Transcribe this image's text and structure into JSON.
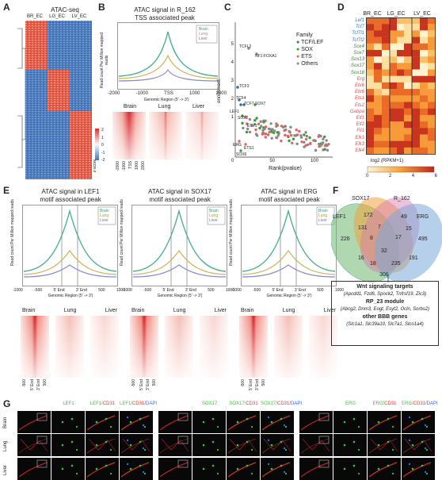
{
  "panels": {
    "A": {
      "label": "A",
      "title": "ATAC-seq",
      "columns": [
        "BR_EC",
        "LG_EC",
        "LV_EC"
      ],
      "legend_ticks": [
        "2",
        "1",
        "0",
        "-1",
        "-2"
      ],
      "legend_label": "z-score",
      "colors": {
        "high": "#d73027",
        "mid": "#f7f7f7",
        "low": "#4575b4"
      }
    },
    "B": {
      "label": "B",
      "title": "ATAC signal in R_162",
      "subtitle": "TSS associated peak",
      "ylabel": "Read count Per Million mapped reads",
      "xlabel": "Genomic Region (5' -> 3')",
      "legend": [
        "Brain",
        "Lung",
        "Liver"
      ],
      "xticks": [
        "-2000",
        "-1000",
        "TSS",
        "1000",
        "2000"
      ],
      "heat_titles": [
        "Brain",
        "Lung",
        "Liver"
      ],
      "heat_ticks": [
        "-2000",
        "-1000",
        "TSS",
        "1000",
        "2000"
      ]
    },
    "C": {
      "label": "C",
      "ylabel": "enrichment",
      "xlabel": "Rank(pvalue)",
      "yticks": [
        "5",
        "4",
        "3",
        "2",
        "1"
      ],
      "xticks": [
        "0",
        "50",
        "100"
      ],
      "legend_title": "Family",
      "legend": [
        {
          "name": "TCF/LEF",
          "color": "#2c6aa0"
        },
        {
          "name": "SOX",
          "color": "#3a9a3a"
        },
        {
          "name": "ETS",
          "color": "#e0655a"
        },
        {
          "name": "Others",
          "color": "#888888"
        }
      ],
      "annotations": [
        "TCFL2",
        "NF1:FOXA1",
        "TCF3",
        "TCF4",
        "LEF1",
        "TCF7",
        "SOX7",
        "SOX2",
        "SOX6",
        "ERG",
        "ETS1",
        "ETV1"
      ]
    },
    "D": {
      "label": "D",
      "columns": [
        "BR_EC",
        "LG_EC",
        "LV_EC"
      ],
      "genes": [
        {
          "name": "Lef1",
          "color": "#3a7bbf"
        },
        {
          "name": "Tcf7",
          "color": "#3a7bbf"
        },
        {
          "name": "Tcf7l1",
          "color": "#3a7bbf"
        },
        {
          "name": "Tcf7l2",
          "color": "#3a7bbf"
        },
        {
          "name": "Sox4",
          "color": "#2f8f2f"
        },
        {
          "name": "Sox7",
          "color": "#2f8f2f"
        },
        {
          "name": "Sox13",
          "color": "#2f8f2f"
        },
        {
          "name": "Sox17",
          "color": "#2f8f2f"
        },
        {
          "name": "Sox18",
          "color": "#2f8f2f"
        },
        {
          "name": "Erg",
          "color": "#d9534f"
        },
        {
          "name": "Etv6",
          "color": "#d9534f"
        },
        {
          "name": "Etv6",
          "color": "#d9534f"
        },
        {
          "name": "Ets1",
          "color": "#d9534f"
        },
        {
          "name": "Ets2",
          "color": "#d9534f"
        },
        {
          "name": "Gabpa",
          "color": "#d9534f"
        },
        {
          "name": "Elf1",
          "color": "#d9534f"
        },
        {
          "name": "Elf2",
          "color": "#d9534f"
        },
        {
          "name": "Fli1",
          "color": "#d9534f"
        },
        {
          "name": "Elk1",
          "color": "#d9534f"
        },
        {
          "name": "Elk3",
          "color": "#d9534f"
        },
        {
          "name": "Elk4",
          "color": "#d9534f"
        }
      ],
      "scale_label": "log2 (RPKM+1)",
      "scale_ticks": [
        "0",
        "2",
        "4",
        "6"
      ]
    },
    "E": {
      "label": "E",
      "plots": [
        {
          "title": "ATAC signal in LEF1",
          "subtitle": "motif associated peak"
        },
        {
          "title": "ATAC signal in SOX17",
          "subtitle": "motif associated peak"
        },
        {
          "title": "ATAC signal in ERG",
          "subtitle": "motif associated peak"
        }
      ],
      "ylabel": "Read count Per Million mapped reads",
      "xlabel": "Genomic Region (5' -> 3')",
      "xticks": [
        "-1000",
        "-500",
        "5' End",
        "3' End",
        "500",
        "1000"
      ],
      "legend": [
        "Brain",
        "Lung",
        "Liver"
      ],
      "heat_titles": [
        "Brain",
        "Lung",
        "Liver"
      ]
    },
    "F": {
      "label": "F",
      "sets": [
        "LEF1",
        "SOX17",
        "R_162",
        "ERG"
      ],
      "numbers": [
        "172",
        "49",
        "226",
        "131",
        "7",
        "15",
        "495",
        "8",
        "17",
        "16",
        "32",
        "191",
        "18",
        "235",
        "306"
      ],
      "box": {
        "heading1": "Wnt signaling targets",
        "genes1": "(Apcdd1, Fzd6, Spock2, Tnfrsf19, Zic3)",
        "heading2": "RP_23 module",
        "genes2a": "(Abcg2, Dnm3, Eogt, Esyt2, Ocln, Sorbs2)",
        "heading3": "other BBB genes",
        "genes3": "(Slc1a1, Slc39a10, Slc7a1, Slco1a4)"
      }
    },
    "G": {
      "label": "G",
      "rows": [
        "Brain",
        "Lung",
        "Liver"
      ],
      "groups": [
        {
          "cols": [
            {
              "text": "LEF1",
              "colors": [
                "#3c3"
              ]
            },
            {
              "text": "LEF1/CD31",
              "colors": [
                "#3c3",
                "#e33"
              ]
            },
            {
              "text": "LEF1/CD31/DAPI",
              "colors": [
                "#3c3",
                "#e33",
                "#36f"
              ]
            }
          ]
        },
        {
          "cols": [
            {
              "text": "SOX17",
              "colors": [
                "#3c3"
              ]
            },
            {
              "text": "SOX17/CD31",
              "colors": [
                "#3c3",
                "#e33"
              ]
            },
            {
              "text": "SOX17/CD31/DAPI",
              "colors": [
                "#3c3",
                "#e33",
                "#36f"
              ]
            }
          ]
        },
        {
          "cols": [
            {
              "text": "ERG",
              "colors": [
                "#3c3"
              ]
            },
            {
              "text": "ERG/CD31",
              "colors": [
                "#3c3",
                "#e33"
              ]
            },
            {
              "text": "ERG/CD31/DAPI",
              "colors": [
                "#3c3",
                "#e33",
                "#36f"
              ]
            }
          ]
        }
      ]
    }
  }
}
